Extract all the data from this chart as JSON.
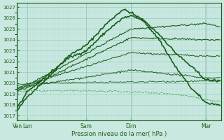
{
  "bg_color": "#c8e8e0",
  "grid_color_major": "#99ccbb",
  "grid_color_minor": "#b8ddd4",
  "line_color_dark": "#1a5c1a",
  "line_color_light": "#4aaa4a",
  "ylabel_vals": [
    1017,
    1018,
    1019,
    1020,
    1021,
    1022,
    1023,
    1024,
    1025,
    1026,
    1027
  ],
  "ylim": [
    1016.6,
    1027.4
  ],
  "xlabel": "Pression niveau de la mer( hPa )",
  "xtick_labels": [
    "Ven",
    "Lun",
    "Sam",
    "Dim",
    "Mar"
  ],
  "xtick_positions": [
    0.0,
    0.05,
    0.34,
    0.56,
    0.93
  ],
  "figsize": [
    3.2,
    2.0
  ],
  "dpi": 100,
  "lines": [
    {
      "color": "#1a5c1a",
      "lw": 1.2,
      "style": "solid",
      "x": [
        0.0,
        0.05,
        0.15,
        0.25,
        0.34,
        0.44,
        0.52,
        0.56,
        0.62,
        0.7,
        0.78,
        0.86,
        0.93,
        1.0
      ],
      "y": [
        1017.5,
        1018.8,
        1020.5,
        1022.5,
        1023.5,
        1025.5,
        1026.8,
        1026.5,
        1025.8,
        1024.0,
        1021.5,
        1019.5,
        1018.2,
        1018.0
      ]
    },
    {
      "color": "#1a5c1a",
      "lw": 1.2,
      "style": "solid",
      "x": [
        0.0,
        0.05,
        0.15,
        0.25,
        0.34,
        0.44,
        0.52,
        0.56,
        0.62,
        0.7,
        0.78,
        0.86,
        0.93,
        1.0
      ],
      "y": [
        1017.8,
        1019.2,
        1020.8,
        1022.3,
        1023.0,
        1024.8,
        1026.0,
        1026.2,
        1025.8,
        1024.5,
        1022.8,
        1021.5,
        1020.3,
        1020.2
      ]
    },
    {
      "color": "#1a5c1a",
      "lw": 0.8,
      "style": "solid",
      "x": [
        0.0,
        0.05,
        0.56,
        0.93,
        1.0
      ],
      "y": [
        1019.5,
        1019.8,
        1025.0,
        1025.5,
        1025.2
      ]
    },
    {
      "color": "#1a5c1a",
      "lw": 0.8,
      "style": "solid",
      "x": [
        0.0,
        0.05,
        0.56,
        0.93,
        1.0
      ],
      "y": [
        1019.3,
        1019.6,
        1024.2,
        1024.0,
        1024.0
      ]
    },
    {
      "color": "#1a5c1a",
      "lw": 0.7,
      "style": "solid",
      "x": [
        0.0,
        0.05,
        0.56,
        0.93,
        1.0
      ],
      "y": [
        1019.6,
        1019.9,
        1022.8,
        1022.5,
        1022.5
      ]
    },
    {
      "color": "#1a5c1a",
      "lw": 0.7,
      "style": "solid",
      "x": [
        0.0,
        0.05,
        0.56,
        0.93,
        1.0
      ],
      "y": [
        1019.4,
        1019.7,
        1021.2,
        1020.5,
        1020.5
      ]
    },
    {
      "color": "#1a5c1a",
      "lw": 0.6,
      "style": "solid",
      "x": [
        0.0,
        0.05,
        0.93,
        1.0
      ],
      "y": [
        1019.8,
        1020.0,
        1020.2,
        1020.2
      ]
    },
    {
      "color": "#4aaa4a",
      "lw": 0.6,
      "style": "dashed",
      "x": [
        0.0,
        0.05,
        0.34,
        0.56,
        0.7,
        0.86,
        0.93,
        1.0
      ],
      "y": [
        1019.2,
        1019.3,
        1019.3,
        1019.2,
        1019.1,
        1018.8,
        1018.5,
        1018.3
      ]
    }
  ]
}
